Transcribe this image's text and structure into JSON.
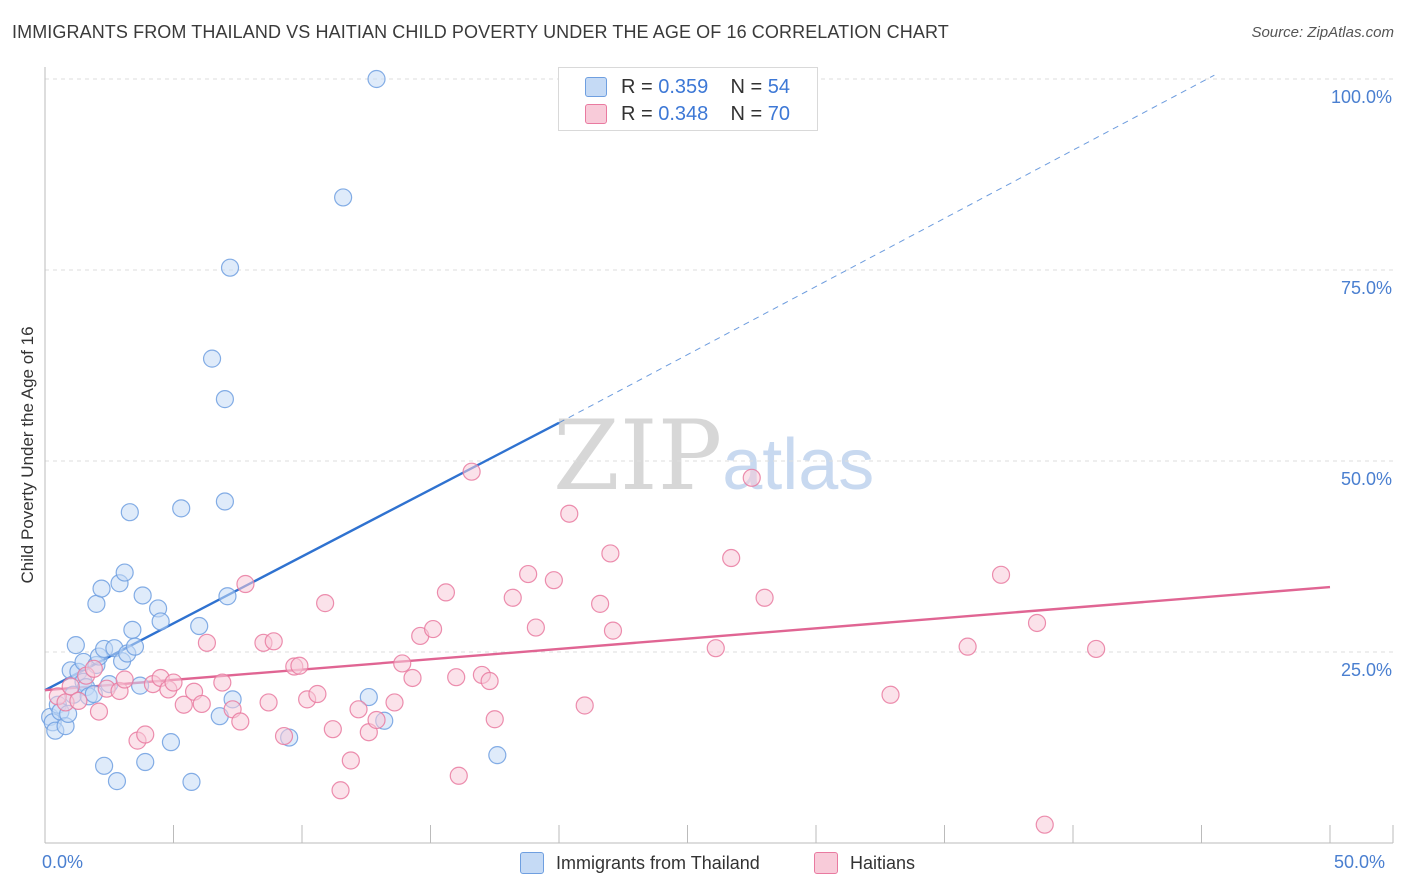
{
  "title": "IMMIGRANTS FROM THAILAND VS HAITIAN CHILD POVERTY UNDER THE AGE OF 16 CORRELATION CHART",
  "source": "Source: ZipAtlas.com",
  "watermark": {
    "zip": "ZIP",
    "atlas": "atlas"
  },
  "legend_stats": [
    {
      "r_label": "R =",
      "r_value": "0.359",
      "n_label": "N =",
      "n_value": "54",
      "color": "#a9c8f0"
    },
    {
      "r_label": "R =",
      "r_value": "0.348",
      "n_label": "N =",
      "n_value": "70",
      "color": "#f5b8cc"
    }
  ],
  "chart_data": {
    "type": "scatter",
    "title": "IMMIGRANTS FROM THAILAND VS HAITIAN CHILD POVERTY UNDER THE AGE OF 16 CORRELATION CHART",
    "xlabel": "",
    "ylabel": "Child Poverty Under the Age of 16",
    "xlim": [
      0,
      50
    ],
    "ylim": [
      0,
      105
    ],
    "x_tick_labels": [
      "0.0%",
      "50.0%"
    ],
    "y_ticks": [
      25,
      50,
      75,
      100
    ],
    "y_tick_labels": [
      "25.0%",
      "50.0%",
      "75.0%",
      "100.0%"
    ],
    "grid": true,
    "legend_position": "bottom",
    "series": [
      {
        "name": "Immigrants from Thailand",
        "color": "#6f9fe0",
        "fill": "#c5daf5",
        "trend": {
          "x0": 0,
          "y0": 20,
          "x1": 20,
          "y1": 55,
          "extended_to_x": 45.5,
          "extended_y": 100.5,
          "color": "#2f72d0"
        },
        "points": [
          [
            0.2,
            16.5
          ],
          [
            0.3,
            15.8
          ],
          [
            0.4,
            14.7
          ],
          [
            0.5,
            18.1
          ],
          [
            0.6,
            17.2
          ],
          [
            0.8,
            15.3
          ],
          [
            0.9,
            16.9
          ],
          [
            1.0,
            22.6
          ],
          [
            1.1,
            19.4
          ],
          [
            1.2,
            25.9
          ],
          [
            1.3,
            22.4
          ],
          [
            1.5,
            21.1
          ],
          [
            1.5,
            23.7
          ],
          [
            1.6,
            20.4
          ],
          [
            1.7,
            19.2
          ],
          [
            1.9,
            19.5
          ],
          [
            2.0,
            31.3
          ],
          [
            2.0,
            23.3
          ],
          [
            2.1,
            24.4
          ],
          [
            2.2,
            33.3
          ],
          [
            2.3,
            25.4
          ],
          [
            2.3,
            10.1
          ],
          [
            2.5,
            20.8
          ],
          [
            2.7,
            25.5
          ],
          [
            2.8,
            8.1
          ],
          [
            2.9,
            34.0
          ],
          [
            3.0,
            23.8
          ],
          [
            3.1,
            35.4
          ],
          [
            3.2,
            24.8
          ],
          [
            3.3,
            43.3
          ],
          [
            3.4,
            27.9
          ],
          [
            3.5,
            25.7
          ],
          [
            3.7,
            20.6
          ],
          [
            3.8,
            32.4
          ],
          [
            3.9,
            10.6
          ],
          [
            4.4,
            30.7
          ],
          [
            4.5,
            29.0
          ],
          [
            4.9,
            13.2
          ],
          [
            5.3,
            43.8
          ],
          [
            5.7,
            8.0
          ],
          [
            6.0,
            28.4
          ],
          [
            6.5,
            63.4
          ],
          [
            6.8,
            16.6
          ],
          [
            7.0,
            58.1
          ],
          [
            7.0,
            44.7
          ],
          [
            7.1,
            32.3
          ],
          [
            7.2,
            75.3
          ],
          [
            7.3,
            18.8
          ],
          [
            9.5,
            13.8
          ],
          [
            11.6,
            84.5
          ],
          [
            12.9,
            100.0
          ],
          [
            12.6,
            19.1
          ],
          [
            13.2,
            16.0
          ],
          [
            17.6,
            11.5
          ]
        ]
      },
      {
        "name": "Haitians",
        "color": "#e97aa0",
        "fill": "#f8cbd9",
        "trend": {
          "x0": 0,
          "y0": 20,
          "x1": 50,
          "y1": 33.5,
          "color": "#e06593"
        },
        "points": [
          [
            0.5,
            19.2
          ],
          [
            0.8,
            18.4
          ],
          [
            1.0,
            20.5
          ],
          [
            1.3,
            18.6
          ],
          [
            1.6,
            21.9
          ],
          [
            1.9,
            22.8
          ],
          [
            2.1,
            17.2
          ],
          [
            2.4,
            20.2
          ],
          [
            2.9,
            19.9
          ],
          [
            3.1,
            21.4
          ],
          [
            3.6,
            13.4
          ],
          [
            3.9,
            14.2
          ],
          [
            4.2,
            20.8
          ],
          [
            4.5,
            21.6
          ],
          [
            4.8,
            20.1
          ],
          [
            5.0,
            21.0
          ],
          [
            5.4,
            18.1
          ],
          [
            5.8,
            19.8
          ],
          [
            6.1,
            18.2
          ],
          [
            6.3,
            26.2
          ],
          [
            6.9,
            21.0
          ],
          [
            7.3,
            17.5
          ],
          [
            7.6,
            15.9
          ],
          [
            7.8,
            33.9
          ],
          [
            8.5,
            26.2
          ],
          [
            8.7,
            18.4
          ],
          [
            8.9,
            26.4
          ],
          [
            9.3,
            14.0
          ],
          [
            9.7,
            23.1
          ],
          [
            9.9,
            23.2
          ],
          [
            10.2,
            18.8
          ],
          [
            10.6,
            19.5
          ],
          [
            10.9,
            31.4
          ],
          [
            11.2,
            14.9
          ],
          [
            11.5,
            6.9
          ],
          [
            11.9,
            10.8
          ],
          [
            12.2,
            17.5
          ],
          [
            12.6,
            14.5
          ],
          [
            12.9,
            16.1
          ],
          [
            13.6,
            18.4
          ],
          [
            13.9,
            23.5
          ],
          [
            14.3,
            21.6
          ],
          [
            14.6,
            27.1
          ],
          [
            15.1,
            28.0
          ],
          [
            15.6,
            32.8
          ],
          [
            16.0,
            21.7
          ],
          [
            16.1,
            8.8
          ],
          [
            16.6,
            48.6
          ],
          [
            17.0,
            22.0
          ],
          [
            17.3,
            21.2
          ],
          [
            17.5,
            16.2
          ],
          [
            18.2,
            32.1
          ],
          [
            18.8,
            35.2
          ],
          [
            19.1,
            28.2
          ],
          [
            19.8,
            34.4
          ],
          [
            20.4,
            43.1
          ],
          [
            21.0,
            18.0
          ],
          [
            21.6,
            31.3
          ],
          [
            22.0,
            37.9
          ],
          [
            22.1,
            27.8
          ],
          [
            26.1,
            25.5
          ],
          [
            26.7,
            37.3
          ],
          [
            27.5,
            47.8
          ],
          [
            28.0,
            32.1
          ],
          [
            32.9,
            19.4
          ],
          [
            35.9,
            25.7
          ],
          [
            37.2,
            35.1
          ],
          [
            38.6,
            28.8
          ],
          [
            38.9,
            2.4
          ],
          [
            40.9,
            25.4
          ]
        ]
      }
    ]
  }
}
